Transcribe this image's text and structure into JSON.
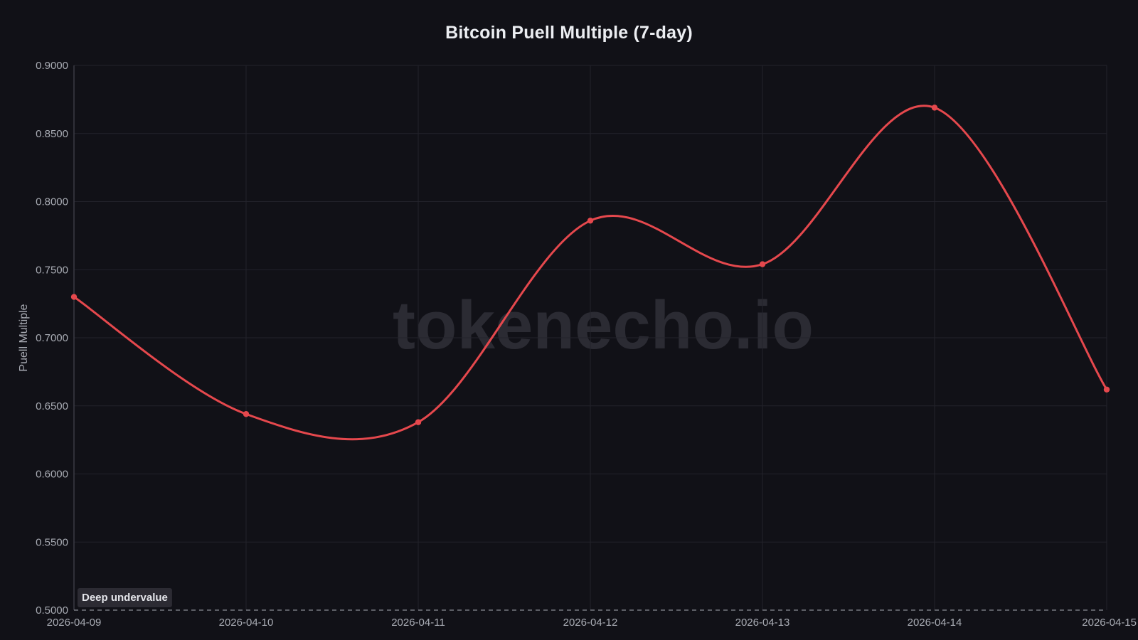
{
  "watermark": "tokenecho.io",
  "chart_data": {
    "type": "line",
    "title": "Bitcoin Puell Multiple (7-day)",
    "xlabel": "",
    "ylabel": "Puell Multiple",
    "x": [
      "2026-04-09",
      "2026-04-10",
      "2026-04-11",
      "2026-04-12",
      "2026-04-13",
      "2026-04-14",
      "2026-04-15"
    ],
    "series": [
      {
        "values": [
          0.73,
          0.644,
          0.638,
          0.786,
          0.754,
          0.869,
          0.662
        ],
        "color": "#e5484d"
      }
    ],
    "ylim": [
      0.5,
      0.9
    ],
    "yticks": [
      "0.5000",
      "0.5500",
      "0.6000",
      "0.6500",
      "0.7000",
      "0.7500",
      "0.8000",
      "0.8500",
      "0.9000"
    ],
    "grid": true,
    "legend": "none",
    "annotations": [
      {
        "label": "Deep undervalue",
        "y": 0.5,
        "style": "dashed",
        "color": "#8a8c94"
      }
    ]
  },
  "colors": {
    "background": "#111117",
    "grid": "#23232b",
    "axis": "#3a3a44",
    "line": "#e5484d"
  }
}
